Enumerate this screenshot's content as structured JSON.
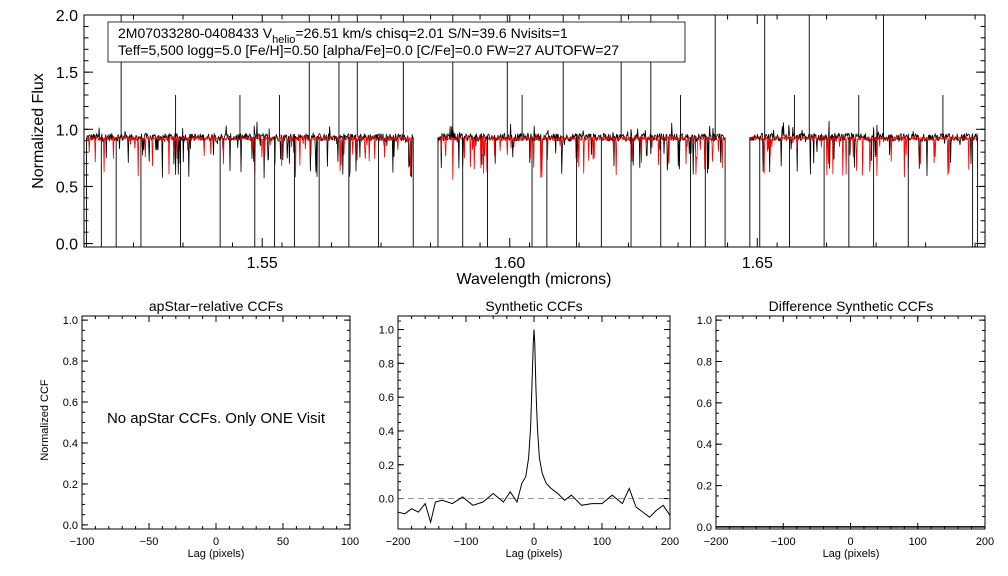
{
  "chart_data": [
    {
      "type": "line",
      "title": "",
      "xlabel": "Wavelength (microns)",
      "ylabel": "Normalized Flux",
      "xlim": [
        1.514,
        1.696
      ],
      "ylim": [
        -0.03,
        2.0
      ],
      "x_ticks": [
        1.55,
        1.6,
        1.65
      ],
      "x_tick_labels": [
        "1.55",
        "1.60",
        "1.65"
      ],
      "y_ticks": [
        0.0,
        0.5,
        1.0,
        1.5,
        2.0
      ],
      "y_tick_labels": [
        "0.0",
        "0.5",
        "1.0",
        "1.5",
        "2.0"
      ],
      "info_box": {
        "line1_a": "2M07033280-0408433  V",
        "line1_sub": "helio",
        "line1_b": "=26.51 km/s  chisq=2.01  S/N=39.6  Nvisits=1",
        "line2": "Teff=5,500 logg=5.0 [Fe/H]=0.50 [alpha/Fe]=0.0 [C/Fe]=0.0 FW=27 AUTOFW=27"
      },
      "chips": [
        [
          1.5145,
          1.5805
        ],
        [
          1.5855,
          1.6435
        ],
        [
          1.6485,
          1.6945
        ]
      ],
      "series": [
        {
          "name": "observed spectrum",
          "color": "#000000",
          "level": 0.93,
          "noise": 0.035
        },
        {
          "name": "best-fit synthetic spectrum",
          "color": "#ff0000",
          "level": 0.92,
          "noise": 0.015
        }
      ],
      "spikes_high": [
        1.5215,
        1.5595,
        1.5655,
        1.5692,
        1.5785,
        1.5885,
        1.5995,
        1.6108,
        1.6225,
        1.6285,
        1.6415,
        1.6515,
        1.6605,
        1.6755
      ],
      "spikes_low": [
        1.5175,
        1.5205,
        1.5255,
        1.5335,
        1.5415,
        1.5485,
        1.5525,
        1.5565,
        1.5615,
        1.5675,
        1.5735,
        1.5905,
        1.5955,
        1.6045,
        1.6075,
        1.6135,
        1.6185,
        1.6245,
        1.6305,
        1.6365,
        1.6395,
        1.6505,
        1.6565,
        1.6635,
        1.6685,
        1.6735,
        1.6805,
        1.6935
      ],
      "spikes_mid": [
        1.5325,
        1.5455,
        1.5535,
        1.6025,
        1.6345,
        1.6575,
        1.6705,
        1.6875
      ]
    },
    {
      "type": "line",
      "title": "apStar−relative CCFs",
      "xlabel": "Lag (pixels)",
      "ylabel": "Normalized CCF",
      "xlim": [
        -100,
        100
      ],
      "ylim": [
        -0.02,
        1.02
      ],
      "x_ticks": [
        -100,
        -50,
        0,
        50,
        100
      ],
      "x_tick_labels": [
        "−100",
        "−50",
        "0",
        "50",
        "100"
      ],
      "y_ticks": [
        0.0,
        0.2,
        0.4,
        0.6,
        0.8,
        1.0
      ],
      "y_tick_labels": [
        "0.0",
        "0.2",
        "0.4",
        "0.6",
        "0.8",
        "1.0"
      ],
      "annotation": "No apStar CCFs.  Only ONE Visit",
      "series": []
    },
    {
      "type": "line",
      "title": "Synthetic CCFs",
      "xlabel": "Lag (pixels)",
      "ylabel": "",
      "xlim": [
        -200,
        200
      ],
      "ylim": [
        -0.18,
        1.08
      ],
      "x_ticks": [
        -200,
        -100,
        0,
        100,
        200
      ],
      "x_tick_labels": [
        "−200",
        "−100",
        "0",
        "100",
        "200"
      ],
      "y_ticks": [
        0.0,
        0.2,
        0.4,
        0.6,
        0.8,
        1.0
      ],
      "y_tick_labels": [
        "0.0",
        "0.2",
        "0.4",
        "0.6",
        "0.8",
        "1.0"
      ],
      "zero_line": true,
      "series": [
        {
          "name": "synthetic CCF",
          "x": [
            -200,
            -190,
            -180,
            -170,
            -160,
            -152,
            -145,
            -135,
            -120,
            -105,
            -90,
            -75,
            -60,
            -45,
            -35,
            -25,
            -18,
            -12,
            -8,
            -5,
            -3,
            -1,
            0,
            1,
            3,
            5,
            8,
            12,
            18,
            25,
            35,
            45,
            55,
            70,
            85,
            100,
            115,
            130,
            140,
            150,
            160,
            170,
            180,
            190,
            200
          ],
          "y": [
            -0.08,
            -0.09,
            -0.06,
            -0.08,
            -0.03,
            -0.14,
            -0.02,
            -0.01,
            -0.03,
            0.01,
            -0.04,
            -0.02,
            0.03,
            -0.02,
            0.04,
            -0.02,
            0.09,
            0.13,
            0.24,
            0.42,
            0.68,
            0.92,
            1.0,
            0.93,
            0.64,
            0.42,
            0.24,
            0.15,
            0.09,
            0.06,
            0.03,
            -0.01,
            0.02,
            -0.04,
            -0.03,
            -0.03,
            0.02,
            -0.03,
            0.06,
            -0.05,
            -0.08,
            -0.11,
            -0.07,
            -0.04,
            -0.1
          ]
        }
      ]
    },
    {
      "type": "line",
      "title": "Difference Synthetic CCFs",
      "xlabel": "Lag (pixels)",
      "ylabel": "",
      "xlim": [
        -200,
        200
      ],
      "ylim": [
        -0.01,
        1.02
      ],
      "x_ticks": [
        -200,
        -100,
        0,
        100,
        200
      ],
      "x_tick_labels": [
        "−200",
        "−100",
        "0",
        "100",
        "200"
      ],
      "y_ticks": [
        0.0,
        0.2,
        0.4,
        0.6,
        0.8,
        1.0
      ],
      "y_tick_labels": [
        "0.0",
        "0.2",
        "0.4",
        "0.6",
        "0.8",
        "1.0"
      ],
      "series": [
        {
          "name": "difference CCF",
          "x": [
            -200,
            200
          ],
          "y": [
            0.0,
            0.0
          ]
        }
      ]
    }
  ]
}
